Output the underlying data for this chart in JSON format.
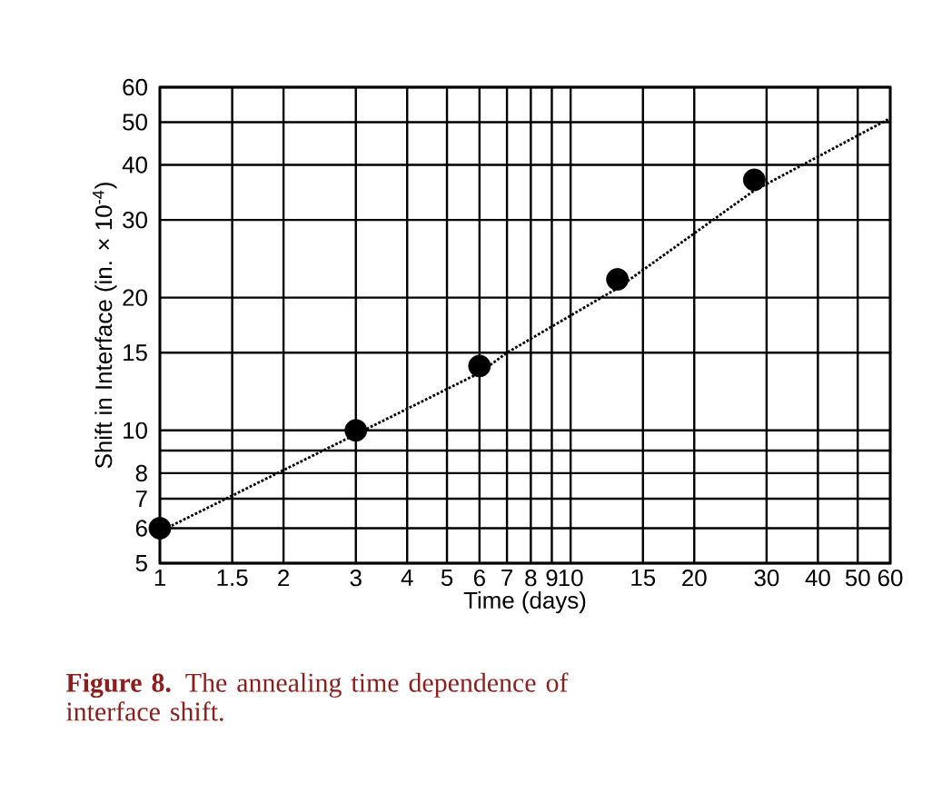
{
  "chart_data": {
    "type": "scatter",
    "xlabel": "Time (days)",
    "ylabel": "Shift in Interface (in. × 10$^{-4}$)",
    "log": "xy",
    "grid": true,
    "xlim": [
      1,
      60
    ],
    "ylim": [
      5,
      60
    ],
    "xticks": [
      1,
      1.5,
      2,
      3,
      4,
      5,
      6,
      7,
      8,
      9,
      10,
      15,
      20,
      30,
      40,
      50,
      60
    ],
    "yticks": [
      5,
      6,
      7,
      8,
      {
        "value": 9,
        "label": null
      },
      10,
      15,
      20,
      30,
      40,
      50,
      60
    ],
    "series": [
      {
        "marker": "circle",
        "color": "#000000",
        "x": [
          1,
          3,
          6,
          13,
          28
        ],
        "values": [
          6,
          10,
          14,
          22,
          37
        ]
      },
      {
        "type": "line",
        "marker": "none",
        "line_style": "dotted",
        "color": "#000000",
        "x": [
          1,
          3,
          6,
          7,
          13,
          28,
          60
        ],
        "values": [
          5.9,
          9.8,
          13.5,
          15,
          21,
          35,
          51
        ]
      }
    ],
    "annotations": [
      "**Figure 8.** The annealing time dependence of interface shift."
    ]
  }
}
